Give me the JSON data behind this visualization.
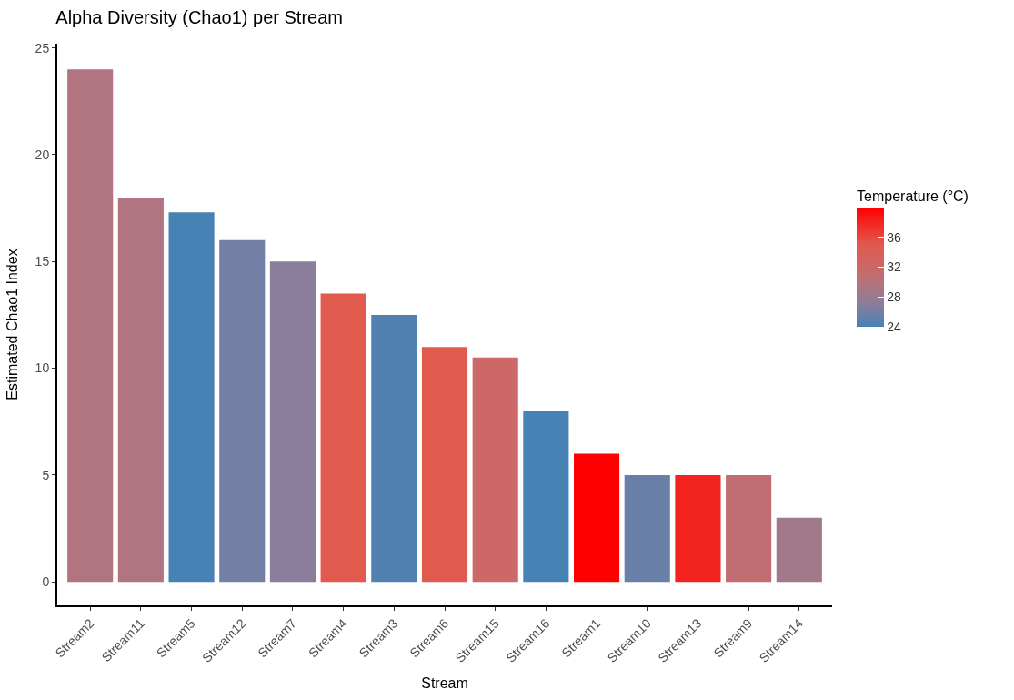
{
  "chart_data": {
    "type": "bar",
    "title": "Alpha Diversity (Chao1) per Stream",
    "xlabel": "Stream",
    "ylabel": "Estimated Chao1 Index",
    "clabel": "Temperature (°C)",
    "categories": [
      "Stream2",
      "Stream11",
      "Stream5",
      "Stream12",
      "Stream7",
      "Stream4",
      "Stream3",
      "Stream6",
      "Stream15",
      "Stream16",
      "Stream1",
      "Stream10",
      "Stream13",
      "Stream9",
      "Stream14"
    ],
    "values": [
      24,
      18,
      17.3,
      16,
      15,
      13.5,
      12.5,
      11,
      10.5,
      8,
      6,
      5,
      5,
      5,
      3
    ],
    "cvalues": [
      29.5,
      29.5,
      24,
      26,
      27,
      35,
      24.5,
      35,
      32,
      24,
      40,
      25.5,
      38,
      31,
      28.5
    ],
    "clim": [
      24,
      40
    ],
    "cticks": [
      24,
      28,
      32,
      36
    ],
    "ylim": [
      -1.1,
      25.2
    ],
    "yticks": [
      0,
      5,
      10,
      15,
      20,
      25
    ]
  }
}
